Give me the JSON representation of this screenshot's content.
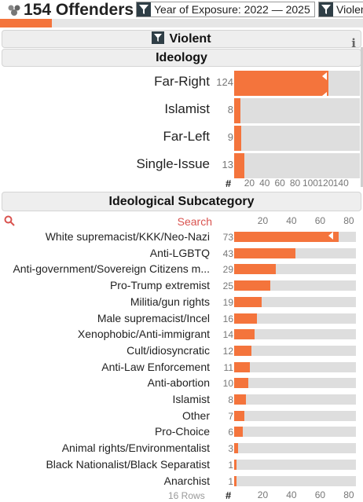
{
  "header": {
    "count": "154 Offenders",
    "icon": "group-icon",
    "progress_fraction": 0.143,
    "filters": [
      {
        "label": "Year of Exposure: 2022 — 2025"
      },
      {
        "label": "Violent"
      }
    ]
  },
  "violent_panel": {
    "title": "Violent",
    "info": "i"
  },
  "ideology": {
    "title": "Ideology",
    "rows": [
      {
        "label": "Far-Right",
        "count": "124",
        "value": 124
      },
      {
        "label": "Islamist",
        "count": "8",
        "value": 8
      },
      {
        "label": "Far-Left",
        "count": "9",
        "value": 9
      },
      {
        "label": "Single-Issue",
        "count": "13",
        "value": 13
      }
    ],
    "axis": {
      "hash": "#",
      "ticks": [
        "20",
        "40",
        "60",
        "80",
        "100",
        "120",
        "140"
      ],
      "max": 165
    }
  },
  "subcategory": {
    "title": "Ideological Subcategory",
    "search_placeholder": "Search",
    "top_ticks": [
      "20",
      "40",
      "60",
      "80"
    ],
    "rows": [
      {
        "label": "White supremacist/KKK/Neo-Nazi",
        "count": "73",
        "value": 73
      },
      {
        "label": "Anti-LGBTQ",
        "count": "43",
        "value": 43
      },
      {
        "label": "Anti-government/Sovereign Citizens m...",
        "count": "29",
        "value": 29
      },
      {
        "label": "Pro-Trump extremist",
        "count": "25",
        "value": 25
      },
      {
        "label": "Militia/gun rights",
        "count": "19",
        "value": 19
      },
      {
        "label": "Male supremacist/Incel",
        "count": "16",
        "value": 16
      },
      {
        "label": "Xenophobic/Anti-immigrant",
        "count": "14",
        "value": 14
      },
      {
        "label": "Cult/idiosyncratic",
        "count": "12",
        "value": 12
      },
      {
        "label": "Anti-Law Enforcement",
        "count": "11",
        "value": 11
      },
      {
        "label": "Anti-abortion",
        "count": "10",
        "value": 10
      },
      {
        "label": "Islamist",
        "count": "8",
        "value": 8
      },
      {
        "label": "Other",
        "count": "7",
        "value": 7
      },
      {
        "label": "Pro-Choice",
        "count": "6",
        "value": 6
      },
      {
        "label": "Animal rights/Environmentalist",
        "count": "3",
        "value": 3
      },
      {
        "label": "Black Nationalist/Black Separatist",
        "count": "1",
        "value": 1
      },
      {
        "label": "Anarchist",
        "count": "1",
        "value": 1
      }
    ],
    "axis": {
      "hash": "#",
      "ticks": [
        "20",
        "40",
        "60",
        "80"
      ],
      "max": 85
    },
    "footer": "16 Rows"
  },
  "colors": {
    "bar": "#f4743c",
    "track": "#dedede",
    "accent": "#d9534f"
  }
}
